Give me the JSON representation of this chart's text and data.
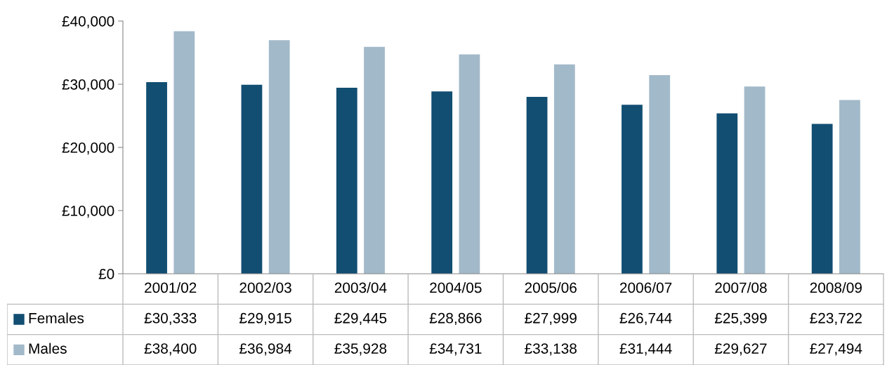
{
  "chart_data": {
    "type": "bar",
    "categories": [
      "2001/02",
      "2002/03",
      "2003/04",
      "2004/05",
      "2005/06",
      "2006/07",
      "2007/08",
      "2008/09"
    ],
    "series": [
      {
        "name": "Females",
        "color": "#124e72",
        "values": [
          30333,
          29915,
          29445,
          28866,
          27999,
          26744,
          25399,
          23722
        ],
        "value_labels": [
          "£30,333",
          "£29,915",
          "£29,445",
          "£28,866",
          "£27,999",
          "£26,744",
          "£25,399",
          "£23,722"
        ]
      },
      {
        "name": "Males",
        "color": "#a2b9c9",
        "values": [
          38400,
          36984,
          35928,
          34731,
          33138,
          31444,
          29627,
          27494
        ],
        "value_labels": [
          "£38,400",
          "£36,984",
          "£35,928",
          "£34,731",
          "£33,138",
          "£31,444",
          "£29,627",
          "£27,494"
        ]
      }
    ],
    "ylim": [
      0,
      40000
    ],
    "yticks": [
      {
        "value": 0,
        "label": "£0"
      },
      {
        "value": 10000,
        "label": "£10,000"
      },
      {
        "value": 20000,
        "label": "£20,000"
      },
      {
        "value": 30000,
        "label": "£30,000"
      },
      {
        "value": 40000,
        "label": "£40,000"
      }
    ],
    "grid": false,
    "legend": "bottom"
  }
}
